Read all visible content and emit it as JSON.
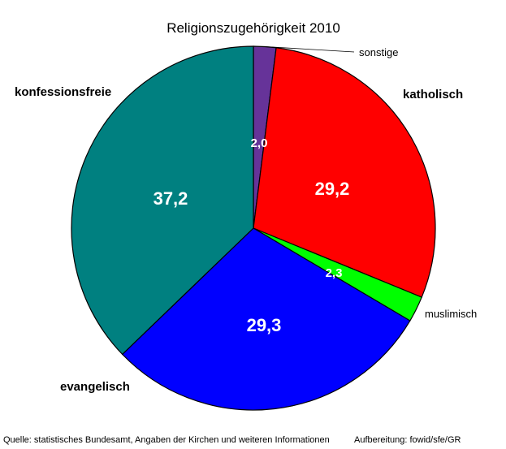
{
  "chart_data": {
    "type": "pie",
    "title": "Religionszugehörigkeit 2010",
    "slices": [
      {
        "label": "sonstige",
        "value": 2.0,
        "display": "2,0",
        "color": "#663399"
      },
      {
        "label": "katholisch",
        "value": 29.2,
        "display": "29,2",
        "color": "#ff0000"
      },
      {
        "label": "muslimisch",
        "value": 2.3,
        "display": "2,3",
        "color": "#00ff00"
      },
      {
        "label": "evangelisch",
        "value": 29.3,
        "display": "29,3",
        "color": "#0000ff"
      },
      {
        "label": "konfessionsfreie",
        "value": 37.2,
        "display": "37,2",
        "color": "#008080"
      }
    ],
    "legend": "none",
    "start_angle": "12 o'clock",
    "direction": "clockwise"
  },
  "footer": {
    "source": "Quelle: statistisches Bundesamt, Angaben der Kirchen und weiteren Informationen",
    "credit": "Aufbereitung: fowid/sfe/GR"
  }
}
